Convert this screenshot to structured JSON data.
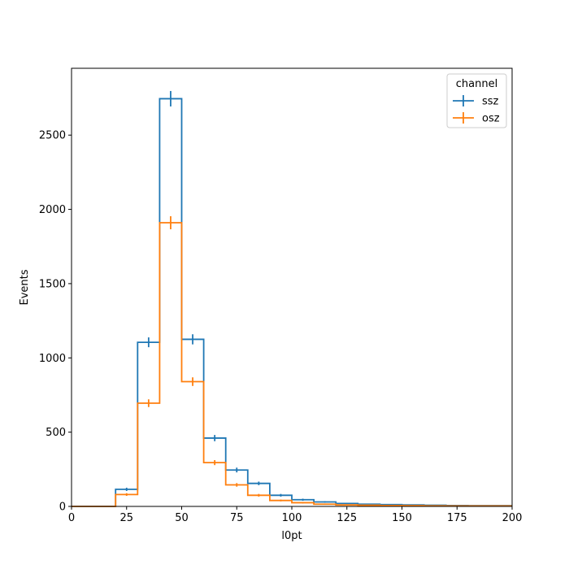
{
  "chart_data": {
    "type": "histogram-step",
    "xlabel": "l0pt",
    "ylabel": "Events",
    "xlim": [
      0,
      200
    ],
    "ylim": [
      0,
      2950
    ],
    "grid": false,
    "legend": {
      "title": "channel",
      "placement": "top-right"
    },
    "xticks": [
      "0",
      "25",
      "50",
      "75",
      "100",
      "125",
      "150",
      "175",
      "200"
    ],
    "yticks": [
      "0",
      "500",
      "1000",
      "1500",
      "2000",
      "2500"
    ],
    "bin_edges": [
      0,
      10,
      20,
      30,
      40,
      50,
      60,
      70,
      80,
      90,
      100,
      110,
      120,
      130,
      140,
      150,
      160,
      170,
      180,
      190,
      200
    ],
    "series": [
      {
        "name": "ssz",
        "color": "#1f77b4",
        "values": [
          0,
          0,
          115,
          1105,
          2745,
          1125,
          460,
          245,
          155,
          75,
          45,
          30,
          20,
          15,
          12,
          10,
          8,
          6,
          5,
          5
        ],
        "errors": [
          0,
          0,
          11,
          33,
          52,
          34,
          21,
          16,
          12,
          9,
          7,
          5,
          4,
          4,
          3,
          3,
          3,
          2,
          2,
          2
        ]
      },
      {
        "name": "osz",
        "color": "#ff7f0e",
        "values": [
          0,
          0,
          80,
          695,
          1910,
          840,
          295,
          145,
          75,
          40,
          25,
          15,
          10,
          8,
          6,
          5,
          4,
          3,
          3,
          3
        ],
        "errors": [
          0,
          0,
          9,
          26,
          44,
          29,
          17,
          12,
          9,
          6,
          5,
          4,
          3,
          3,
          2,
          2,
          2,
          2,
          2,
          2
        ]
      }
    ]
  }
}
